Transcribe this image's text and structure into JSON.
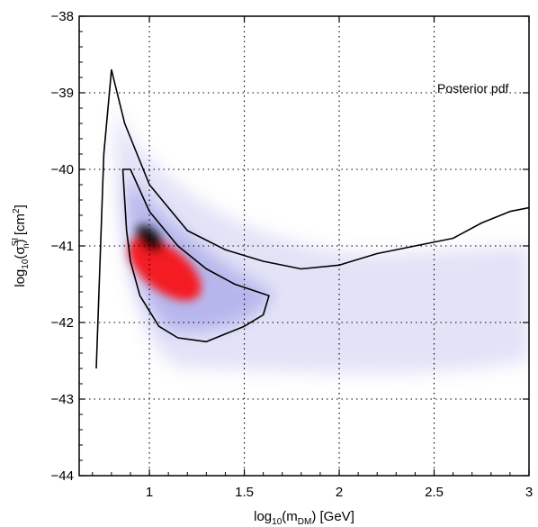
{
  "chart_data": {
    "type": "heatmap",
    "title": "",
    "annotation": "Posterior pdf",
    "xlabel": {
      "base": "log",
      "sub": "10",
      "open": "(m",
      "sub2": "DM",
      "close": ") [GeV]"
    },
    "ylabel": {
      "base": "log",
      "sub": "10",
      "open": "(σ",
      "sup": "SI",
      "subn": "n",
      "close": ") [cm",
      "unitsup": "2",
      "end": "]"
    },
    "xlim": [
      0.63,
      3.0
    ],
    "ylim": [
      -44,
      -38
    ],
    "x_ticks": [
      1,
      1.5,
      2,
      2.5,
      3
    ],
    "x_tick_labels": [
      "1",
      "1.5",
      "2",
      "2.5",
      "3"
    ],
    "y_ticks": [
      -44,
      -43,
      -42,
      -41,
      -40,
      -39,
      -38
    ],
    "y_tick_labels": [
      "−44",
      "−43",
      "−42",
      "−41",
      "−40",
      "−39",
      "−38"
    ],
    "grid": true,
    "colormap": [
      "#ffffff",
      "#8080e0",
      "#ff0000",
      "#000000"
    ],
    "density_peak": {
      "x": 1.0,
      "y": -40.9
    },
    "contours": [
      {
        "level": "outer",
        "points": [
          [
            0.72,
            -42.6
          ],
          [
            0.76,
            -39.8
          ],
          [
            0.8,
            -38.7
          ],
          [
            0.87,
            -39.4
          ],
          [
            1.0,
            -40.2
          ],
          [
            1.2,
            -40.8
          ],
          [
            1.4,
            -41.05
          ],
          [
            1.6,
            -41.2
          ],
          [
            1.8,
            -41.3
          ],
          [
            2.0,
            -41.25
          ],
          [
            2.2,
            -41.1
          ],
          [
            2.4,
            -41.0
          ],
          [
            2.6,
            -40.9
          ],
          [
            2.75,
            -40.7
          ],
          [
            2.9,
            -40.55
          ],
          [
            3.0,
            -40.5
          ]
        ]
      },
      {
        "level": "inner",
        "points": [
          [
            0.88,
            -40.8
          ],
          [
            0.86,
            -40.0
          ],
          [
            0.9,
            -40.0
          ],
          [
            1.0,
            -40.55
          ],
          [
            1.15,
            -41.0
          ],
          [
            1.3,
            -41.3
          ],
          [
            1.45,
            -41.5
          ],
          [
            1.63,
            -41.65
          ],
          [
            1.6,
            -41.9
          ],
          [
            1.5,
            -42.05
          ],
          [
            1.3,
            -42.25
          ],
          [
            1.15,
            -42.2
          ],
          [
            1.05,
            -42.05
          ],
          [
            0.95,
            -41.65
          ],
          [
            0.9,
            -41.2
          ],
          [
            0.88,
            -40.8
          ]
        ]
      }
    ]
  }
}
